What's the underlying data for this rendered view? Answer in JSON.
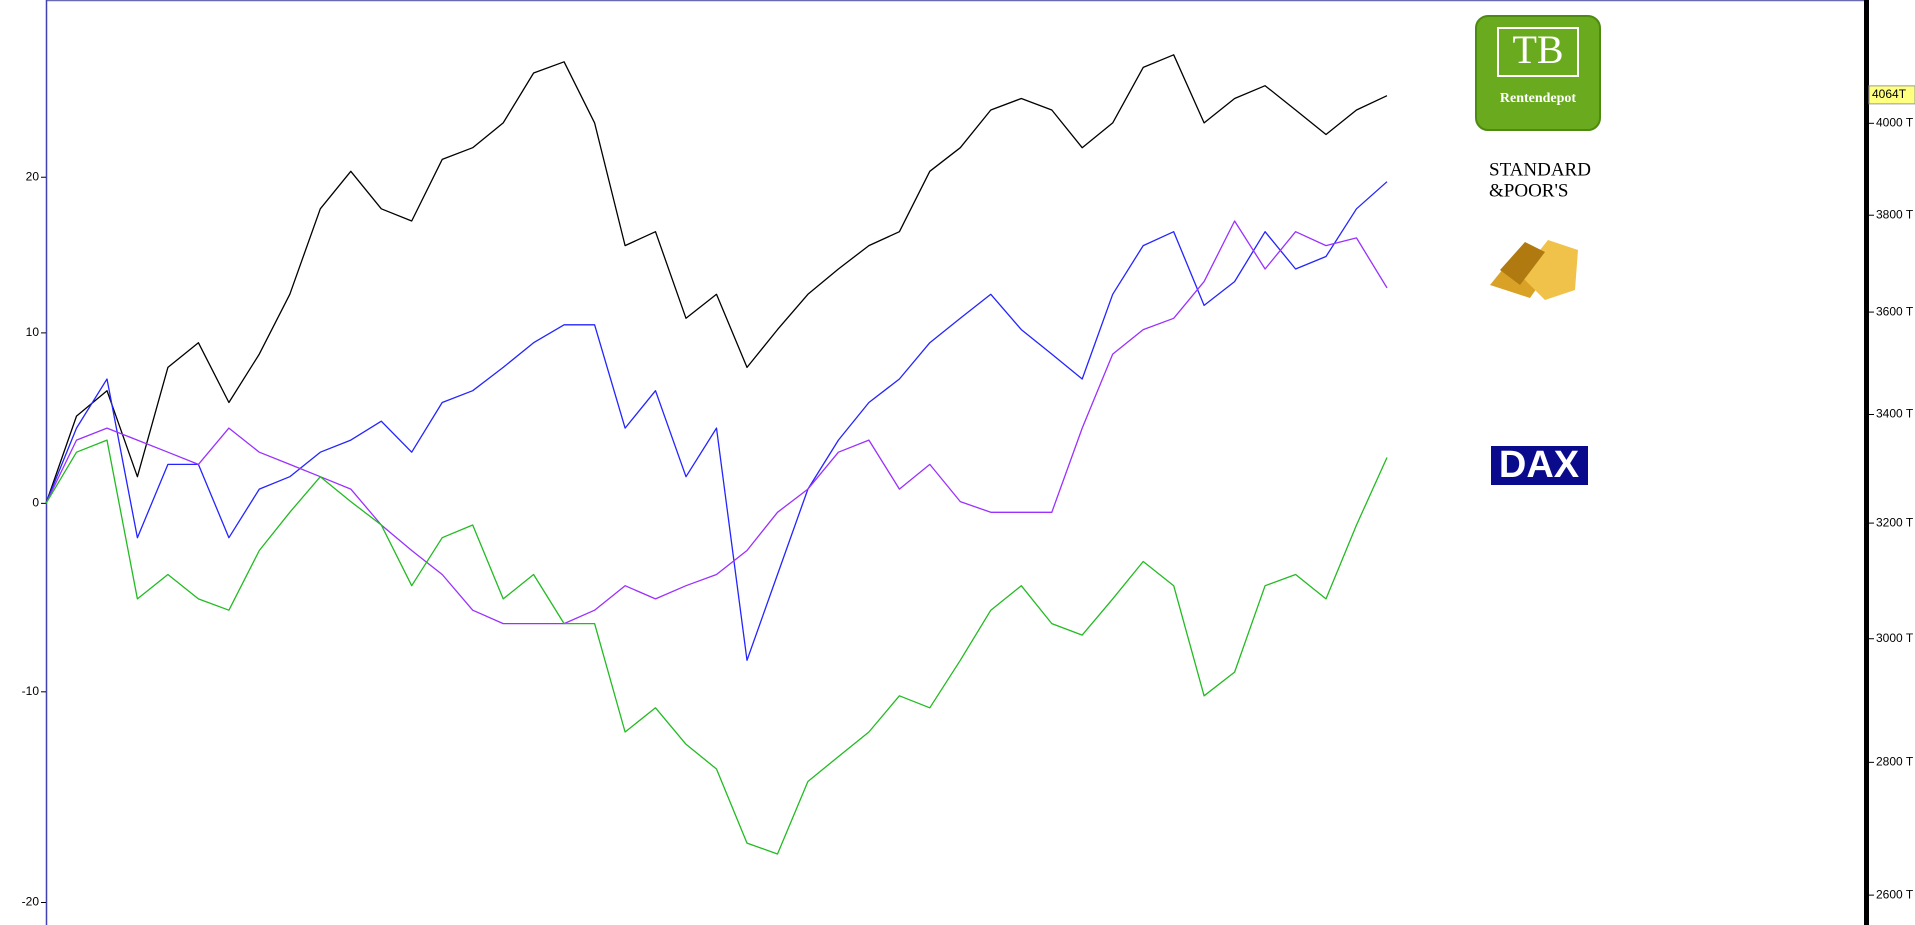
{
  "chart_data": {
    "type": "line",
    "log_scale": true,
    "ylim": [
      -21,
      32.5
    ],
    "yticks": [
      -20,
      -10,
      0,
      10,
      20
    ],
    "y2lim": [
      2557,
      4285
    ],
    "y2ticks": [
      {
        "value": 2600,
        "label": "2600 T"
      },
      {
        "value": 2800,
        "label": "2800 T"
      },
      {
        "value": 3000,
        "label": "3000 T"
      },
      {
        "value": 3200,
        "label": "3200 T"
      },
      {
        "value": 3400,
        "label": "3400 T"
      },
      {
        "value": 3600,
        "label": "3600 T"
      },
      {
        "value": 3800,
        "label": "3800 T"
      },
      {
        "value": 4000,
        "label": "4000 T"
      }
    ],
    "y2_marker": {
      "value": 4064,
      "label": "4064T"
    },
    "logos": {
      "tb": "TB",
      "tb_caption": "Rentendepot",
      "sp_line1": "STANDARD",
      "sp_line2": "&POOR'S",
      "dax": "DAX"
    },
    "series": [
      {
        "color": "#000000",
        "values": [
          0,
          5.0,
          6.5,
          1.5,
          7.9,
          9.4,
          5.8,
          8.7,
          12.4,
          17.9,
          20.4,
          17.9,
          17.1,
          21.2,
          22.0,
          23.7,
          27.2,
          28.0,
          23.7,
          15.5,
          16.4,
          10.9,
          12.4,
          7.9,
          10.2,
          12.4,
          14.0,
          15.5,
          16.4,
          20.4,
          22.0,
          24.6,
          25.4,
          24.6,
          22.0,
          23.7,
          27.6,
          28.5,
          23.7,
          25.4,
          26.3,
          24.6,
          22.9,
          24.6,
          25.6
        ]
      },
      {
        "color": "#2424ff",
        "values": [
          0,
          4.3,
          7.2,
          -1.9,
          2.2,
          2.2,
          -1.9,
          0.8,
          1.5,
          2.9,
          3.6,
          4.7,
          2.9,
          5.8,
          6.5,
          7.9,
          9.4,
          10.5,
          10.5,
          4.3,
          6.5,
          1.5,
          4.3,
          -8.4,
          -3.9,
          0.8,
          3.6,
          5.8,
          7.2,
          9.4,
          10.9,
          12.4,
          10.2,
          8.7,
          7.2,
          12.4,
          15.5,
          16.4,
          11.7,
          13.2,
          16.4,
          14.0,
          14.8,
          17.9,
          19.7
        ]
      },
      {
        "color": "#9b30ff",
        "values": [
          0,
          3.6,
          4.3,
          3.6,
          2.9,
          2.2,
          4.3,
          2.9,
          2.2,
          1.5,
          0.8,
          -1.2,
          -2.6,
          -3.9,
          -5.8,
          -6.5,
          -6.5,
          -6.5,
          -5.8,
          -4.5,
          -5.2,
          -4.5,
          -3.9,
          -2.6,
          -0.5,
          0.8,
          2.9,
          3.6,
          0.8,
          2.2,
          0.1,
          -0.5,
          -0.5,
          -0.5,
          4.3,
          8.7,
          10.2,
          10.9,
          13.2,
          17.1,
          14.0,
          16.4,
          15.5,
          16.0,
          12.8
        ]
      },
      {
        "color": "#22bb22",
        "values": [
          0,
          2.9,
          3.6,
          -5.2,
          -3.9,
          -5.2,
          -5.8,
          -2.6,
          -0.5,
          1.5,
          0.1,
          -1.2,
          -4.5,
          -1.9,
          -1.2,
          -5.2,
          -3.9,
          -6.5,
          -6.5,
          -12.0,
          -10.8,
          -12.6,
          -13.8,
          -17.3,
          -17.8,
          -14.4,
          -13.2,
          -12.0,
          -10.2,
          -10.8,
          -8.4,
          -5.8,
          -4.5,
          -6.5,
          -7.1,
          -5.2,
          -3.2,
          -4.5,
          -10.2,
          -9.0,
          -4.5,
          -3.9,
          -5.2,
          -1.2,
          2.6
        ]
      }
    ]
  }
}
